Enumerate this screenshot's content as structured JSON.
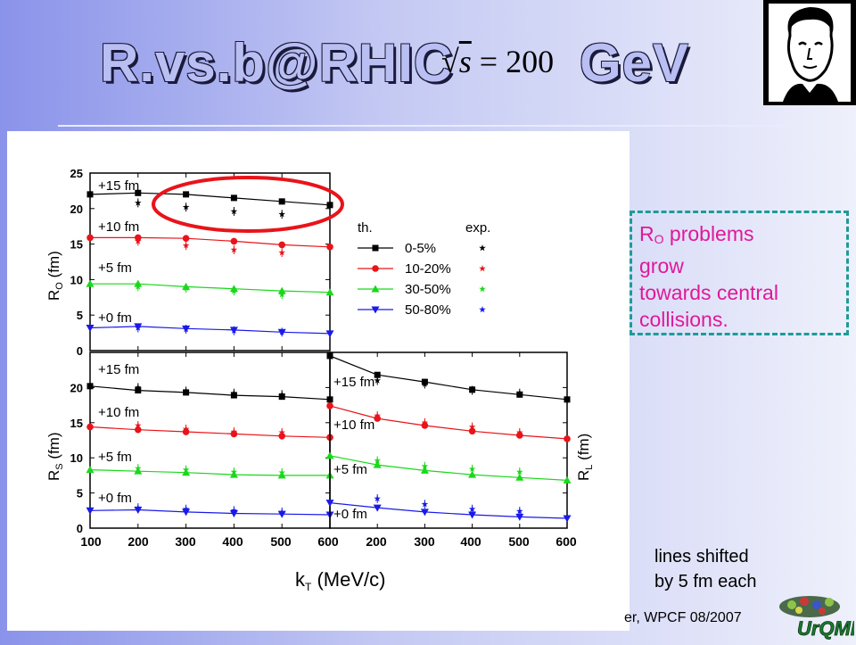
{
  "title_left": "R.vs.b@RHIC",
  "title_right": "GeV",
  "formula_num": "200",
  "note": {
    "r_sub": "O",
    "lines": [
      " problems",
      "grow",
      "towards central",
      "collisions."
    ]
  },
  "shift_note": [
    "lines shifted",
    "by 5 fm each"
  ],
  "footer": "er, WPCF 08/2007",
  "logo_text": "UrQMD",
  "colors": {
    "th_0_5": "#000000",
    "th_10_20": "#e8141a",
    "th_30_50": "#1ad81a",
    "th_50_80": "#1a1ae8",
    "note": "#e0189a",
    "dashed": "#1e9b98",
    "circle": "#e8141a"
  },
  "chart_data": [
    {
      "type": "line",
      "panel": "R_O",
      "ylabel": "R_O (fm)",
      "x": [
        100,
        200,
        300,
        400,
        500,
        600
      ],
      "ylim": [
        0,
        25
      ],
      "yticks": [
        "0",
        "5",
        "10",
        "15",
        "20",
        "25"
      ],
      "offset_labels": [
        "+15 fm",
        "+10 fm",
        "+5 fm",
        "+0 fm"
      ],
      "series": [
        {
          "name": "0-5%",
          "values": [
            22.0,
            22.2,
            22.0,
            21.5,
            21.0,
            20.5
          ],
          "exp": [
            null,
            20.8,
            20.2,
            19.6,
            19.2,
            null
          ]
        },
        {
          "name": "10-20%",
          "values": [
            15.9,
            15.9,
            15.8,
            15.4,
            14.9,
            14.6
          ],
          "exp": [
            null,
            15.4,
            14.8,
            14.2,
            13.8,
            null
          ]
        },
        {
          "name": "30-50%",
          "values": [
            9.4,
            9.4,
            9.0,
            8.7,
            8.4,
            8.2
          ],
          "exp": [
            null,
            9.0,
            8.8,
            8.4,
            7.9,
            null
          ]
        },
        {
          "name": "50-80%",
          "values": [
            3.2,
            3.4,
            3.1,
            2.9,
            2.6,
            2.4
          ],
          "exp": [
            null,
            3.2,
            3.0,
            2.8,
            2.6,
            null
          ]
        }
      ],
      "legend": {
        "th": "th.",
        "exp": "exp.",
        "entries": [
          "0-5%",
          "10-20%",
          "30-50%",
          "50-80%"
        ]
      }
    },
    {
      "type": "line",
      "panel": "R_S",
      "ylabel": "R_S (fm)",
      "x": [
        100,
        200,
        300,
        400,
        500,
        600
      ],
      "ylim": [
        0,
        25
      ],
      "yticks": [
        "0",
        "5",
        "10",
        "15",
        "20"
      ],
      "offset_labels": [
        "+15 fm",
        "+10 fm",
        "+5 fm",
        "+0 fm"
      ],
      "series": [
        {
          "name": "0-5%",
          "values": [
            20.2,
            19.6,
            19.3,
            18.9,
            18.7,
            18.3
          ],
          "exp": [
            null,
            20.0,
            19.5,
            19.2,
            19.0,
            null
          ]
        },
        {
          "name": "10-20%",
          "values": [
            14.4,
            14.0,
            13.7,
            13.4,
            13.1,
            12.9
          ],
          "exp": [
            null,
            14.6,
            14.1,
            13.7,
            13.6,
            null
          ]
        },
        {
          "name": "30-50%",
          "values": [
            8.3,
            8.1,
            7.9,
            7.6,
            7.5,
            7.5
          ],
          "exp": [
            null,
            8.5,
            8.3,
            8.0,
            7.9,
            null
          ]
        },
        {
          "name": "50-80%",
          "values": [
            2.5,
            2.6,
            2.3,
            2.1,
            2.0,
            1.9
          ],
          "exp": [
            null,
            2.9,
            2.7,
            2.5,
            2.3,
            null
          ]
        }
      ]
    },
    {
      "type": "line",
      "panel": "R_L",
      "ylabel": "R_L (fm)",
      "x": [
        100,
        200,
        300,
        400,
        500,
        600
      ],
      "ylim": [
        0,
        25
      ],
      "offset_labels": [
        "+15 fm",
        "+10 fm",
        "+5 fm",
        "+0 fm"
      ],
      "series": [
        {
          "name": "0-5%",
          "values": [
            24.5,
            21.8,
            20.8,
            19.7,
            19.0,
            18.3
          ],
          "exp": [
            null,
            21.0,
            20.5,
            19.6,
            19.2,
            null
          ]
        },
        {
          "name": "10-20%",
          "values": [
            17.4,
            15.6,
            14.6,
            13.8,
            13.2,
            12.7
          ],
          "exp": [
            null,
            16.0,
            15.0,
            14.4,
            13.6,
            null
          ]
        },
        {
          "name": "30-50%",
          "values": [
            10.3,
            9.0,
            8.2,
            7.6,
            7.2,
            6.8
          ],
          "exp": [
            null,
            9.6,
            8.8,
            8.4,
            8.0,
            null
          ]
        },
        {
          "name": "50-80%",
          "values": [
            3.6,
            2.9,
            2.3,
            1.9,
            1.6,
            1.4
          ],
          "exp": [
            null,
            4.2,
            3.4,
            2.7,
            2.4,
            null
          ]
        }
      ]
    }
  ],
  "xaxis": {
    "ticks": [
      "100",
      "200",
      "300",
      "400",
      "500",
      "600",
      "200",
      "300",
      "400",
      "500",
      "600"
    ],
    "label_k": "k",
    "label_sub": "T",
    "label_rest": " (MeV/c)"
  }
}
